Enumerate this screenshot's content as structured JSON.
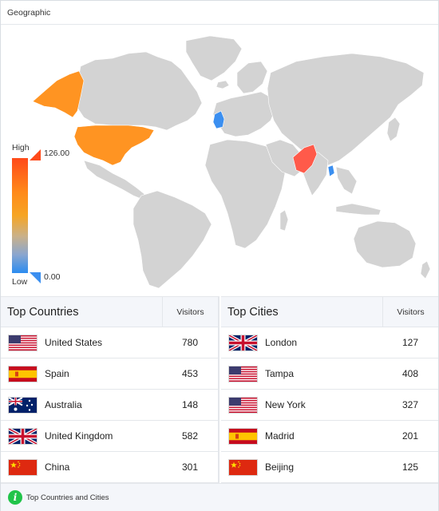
{
  "panel": {
    "title": "Geographic"
  },
  "legend": {
    "high_label": "High",
    "low_label": "Low",
    "max_value": "126.00",
    "min_value": "0.00"
  },
  "colors": {
    "land": "#d3d3d3",
    "high": "#ff4a1a",
    "mid": "#ff9422",
    "low": "#3b8ff0",
    "header_bg": "#f4f6fa",
    "info": "#21c44a"
  },
  "highlighted_regions": [
    {
      "name": "United States",
      "color": "#ff9422"
    },
    {
      "name": "Alaska",
      "color": "#ff9422"
    },
    {
      "name": "United Kingdom",
      "color": "#3b8ff0"
    },
    {
      "name": "Pakistan",
      "color": "#ff5a4a"
    },
    {
      "name": "Bangladesh",
      "color": "#3b8ff0"
    }
  ],
  "top_countries": {
    "title": "Top Countries",
    "visitors_label": "Visitors",
    "rows": [
      {
        "flag": "us-flag-icon",
        "name": "United States",
        "visitors": "780"
      },
      {
        "flag": "es-flag-icon",
        "name": "Spain",
        "visitors": "453"
      },
      {
        "flag": "au-flag-icon",
        "name": "Australia",
        "visitors": "148"
      },
      {
        "flag": "uk-flag-icon",
        "name": "United Kingdom",
        "visitors": "582"
      },
      {
        "flag": "cn-flag-icon",
        "name": "China",
        "visitors": "301"
      }
    ]
  },
  "top_cities": {
    "title": "Top Cities",
    "visitors_label": "Visitors",
    "rows": [
      {
        "flag": "uk-flag-icon",
        "name": "London",
        "visitors": "127"
      },
      {
        "flag": "us-flag-icon",
        "name": "Tampa",
        "visitors": "408"
      },
      {
        "flag": "us-flag-icon",
        "name": "New York",
        "visitors": "327"
      },
      {
        "flag": "es-flag-icon",
        "name": "Madrid",
        "visitors": "201"
      },
      {
        "flag": "cn-flag-icon",
        "name": "Beijing",
        "visitors": "125"
      }
    ]
  },
  "footer": {
    "icon": "info-icon",
    "text": "Top Countries and Cities"
  }
}
